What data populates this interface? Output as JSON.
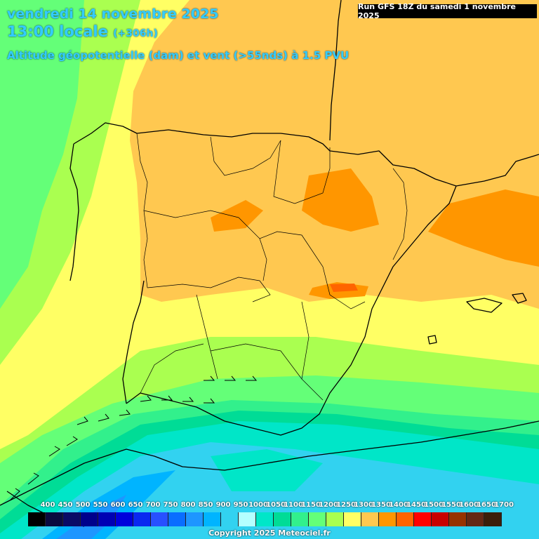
{
  "header": {
    "date": "vendredi 14 novembre 2025",
    "time": "13:00 locale",
    "lead": "(+306h)",
    "parameter": "Altitude géopotentielle (dam) et vent (>55nds) à 1.5 PVU",
    "run": "Run GFS 18Z du samedi 1 novembre 2025"
  },
  "legend": {
    "labels": [
      "400",
      "450",
      "500",
      "550",
      "600",
      "650",
      "700",
      "750",
      "800",
      "850",
      "900",
      "950",
      "1000",
      "1050",
      "1100",
      "1150",
      "1200",
      "1250",
      "1300",
      "1350",
      "1400",
      "1450",
      "1500",
      "1550",
      "1600",
      "1650",
      "1700"
    ],
    "colors": [
      "#000000",
      "#0a0a40",
      "#0a0a66",
      "#00008c",
      "#0000b4",
      "#0000dc",
      "#0a28f0",
      "#2850ff",
      "#0a6eff",
      "#1e96ff",
      "#00b4ff",
      "#32d2f0",
      "#b4ffff",
      "#00e6c8",
      "#00dc96",
      "#32f08c",
      "#64ff78",
      "#aaff50",
      "#ffff64",
      "#ffc850",
      "#ff9600",
      "#ff6400",
      "#ff0000",
      "#c80000",
      "#963200",
      "#642814",
      "#3c1e0a"
    ]
  },
  "copyright": "Copyright 2025 Meteociel.fr"
}
